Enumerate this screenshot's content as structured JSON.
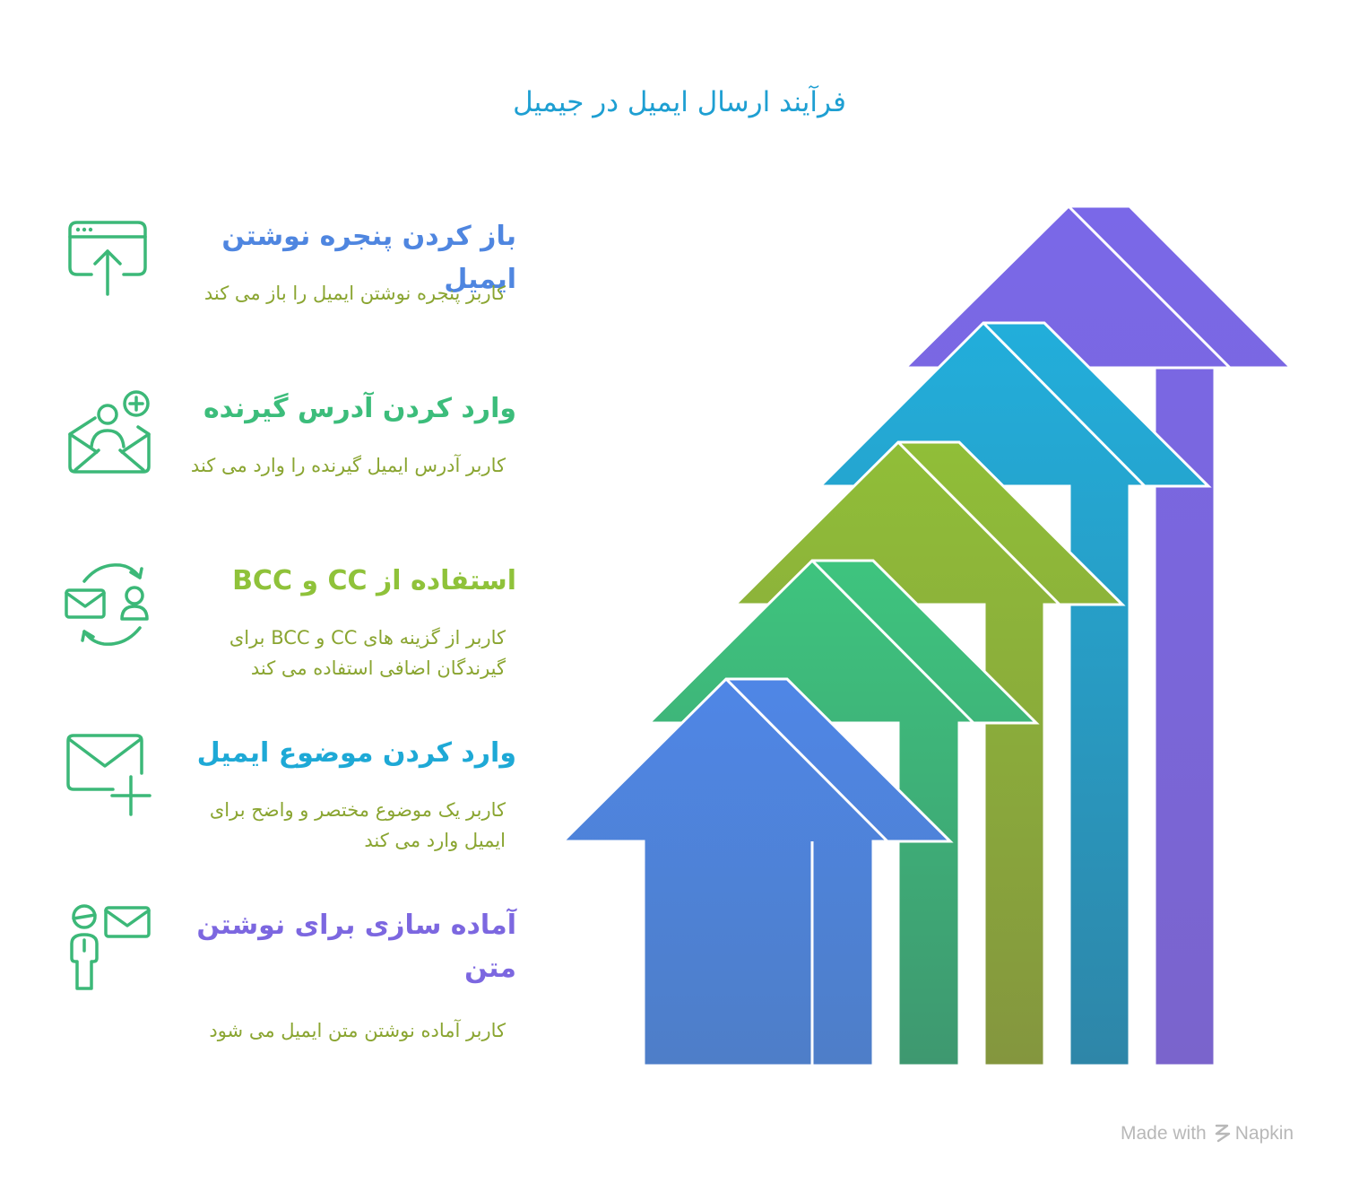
{
  "title": "فرآیند ارسال ایمیل در جیمیل",
  "steps": [
    {
      "title": "باز کردن پنجره نوشتن ایمیل",
      "description": "کاربر پنجره نوشتن ایمیل را باز می کند",
      "icon": "browser-window-upload-icon",
      "color": "#4f86e0"
    },
    {
      "title": "وارد کردن آدرس گیرنده",
      "description": "کاربر آدرس ایمیل گیرنده را وارد می کند",
      "icon": "envelope-add-recipient-icon",
      "color": "#3cbd7b"
    },
    {
      "title": "استفاده از CC و BCC",
      "description": "کاربر از گزینه های CC و BCC برای گیرندگان اضافی استفاده می کند",
      "icon": "mail-user-cycle-icon",
      "color": "#8fc23a"
    },
    {
      "title": "وارد کردن موضوع ایمیل",
      "description": "کاربر یک موضوع مختصر و واضح برای ایمیل وارد می کند",
      "icon": "envelope-plus-icon",
      "color": "#1ea9d6"
    },
    {
      "title": "آماده سازی برای نوشتن متن",
      "description": "کاربر آماده نوشتن متن ایمیل می شود",
      "icon": "person-envelope-icon",
      "color": "#7c67e0"
    }
  ],
  "arrow_colors": [
    "#4f86e0",
    "#3cbd7b",
    "#8db83a",
    "#1ea9d6",
    "#7c67e0"
  ],
  "icon_color": "#3cb878",
  "description_color": "#8aa531",
  "watermark": {
    "prefix": "Made with",
    "brand": "Napkin"
  }
}
